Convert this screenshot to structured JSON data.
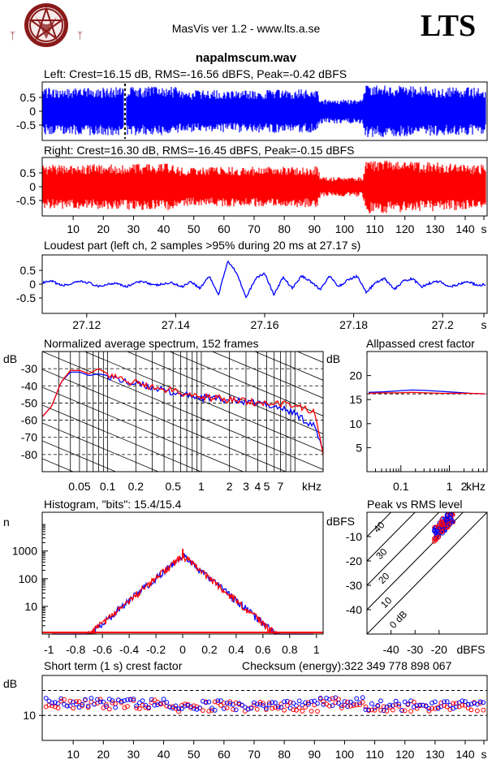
{
  "header": {
    "app_title": "MasVis ver 1.2 - www.lts.a.se",
    "brand": "LTS",
    "logo": "pentagram-goat-logo",
    "filename": "napalmscum.wav"
  },
  "colors": {
    "left": "#0000ff",
    "right": "#ff0000",
    "axis": "#000000"
  },
  "chart_data": [
    {
      "id": "left-waveform",
      "type": "area",
      "title": "Left: Crest=16.15 dB, RMS=-16.56 dBFS, Peak=-0.42 dBFS",
      "yticks": [
        "0.5",
        "0",
        "-0.5"
      ],
      "ylim": [
        -1,
        1
      ],
      "xlim": [
        0,
        147
      ],
      "loudest_marker_s": 27.17,
      "envelope_profile": [
        {
          "x": 0,
          "amp": 0.85
        },
        {
          "x": 44,
          "amp": 0.9
        },
        {
          "x": 45,
          "amp": 0.75
        },
        {
          "x": 85,
          "amp": 0.8
        },
        {
          "x": 91,
          "amp": 0.75
        },
        {
          "x": 92,
          "amp": 0.45
        },
        {
          "x": 106,
          "amp": 0.45
        },
        {
          "x": 107,
          "amp": 0.95
        },
        {
          "x": 147,
          "amp": 0.85
        }
      ]
    },
    {
      "id": "right-waveform",
      "type": "area",
      "title": "Right: Crest=16.30 dB, RMS=-16.45 dBFS, Peak=-0.15 dBFS",
      "yticks": [
        "0.5",
        "0",
        "-0.5"
      ],
      "ylim": [
        -1,
        1
      ],
      "xlim": [
        0,
        147
      ],
      "xticks": [
        "10",
        "20",
        "30",
        "40",
        "50",
        "60",
        "70",
        "80",
        "90",
        "100",
        "110",
        "120",
        "130",
        "140",
        "s"
      ],
      "envelope_profile": [
        {
          "x": 0,
          "amp": 0.8
        },
        {
          "x": 44,
          "amp": 0.85
        },
        {
          "x": 45,
          "amp": 0.7
        },
        {
          "x": 91,
          "amp": 0.75
        },
        {
          "x": 92,
          "amp": 0.35
        },
        {
          "x": 106,
          "amp": 0.35
        },
        {
          "x": 107,
          "amp": 1.0
        },
        {
          "x": 147,
          "amp": 0.8
        }
      ]
    },
    {
      "id": "loudest-part",
      "type": "line",
      "title": "Loudest part (left  ch, 2 samples >95% during 20 ms at 27.17 s)",
      "yticks": [
        "0.5",
        "0",
        "-0.5"
      ],
      "ylim": [
        -1,
        1
      ],
      "xlim": [
        27.11,
        27.21
      ],
      "xticks": [
        "27.12",
        "27.14",
        "27.16",
        "27.18",
        "27.2",
        "s"
      ],
      "series": [
        {
          "values": [
            0.05,
            0.1,
            -0.05,
            0.0,
            0.1,
            0.05,
            -0.1,
            0.0,
            0.05,
            -0.1,
            0.05,
            0.1,
            -0.05,
            0.0,
            0.05,
            -0.1,
            0.1,
            -0.15,
            0.3,
            -0.4,
            0.85,
            0.4,
            -0.5,
            0.2,
            0.4,
            -0.4,
            0.25,
            -0.15,
            0.3,
            0.1,
            -0.2,
            0.3,
            -0.1,
            0.15,
            0.3,
            -0.3,
            0.05,
            0.2,
            -0.2,
            0.1,
            0.2,
            -0.1,
            0.05,
            0.1,
            -0.1,
            0.0,
            0.1,
            -0.05,
            0.0
          ]
        }
      ]
    },
    {
      "id": "avg-spectrum",
      "type": "line",
      "title": "Normalized average spectrum, 152 frames",
      "ylabel": "dB",
      "yticks": [
        "-30",
        "-40",
        "-50",
        "-60",
        "-70",
        "-80"
      ],
      "ylim": [
        -90,
        -20
      ],
      "xticks": [
        "0.05",
        "0.1",
        "0.2",
        "0.5",
        "1",
        "2",
        "3",
        "4",
        "5",
        "7",
        "kHz"
      ],
      "series": [
        {
          "values": [
            -58,
            -52,
            -38,
            -32,
            -32,
            -34,
            -33,
            -34,
            -36,
            -38,
            -39,
            -40,
            -41,
            -43,
            -44,
            -45,
            -46,
            -47,
            -47,
            -48,
            -48,
            -49,
            -50,
            -50,
            -51,
            -52,
            -54,
            -56,
            -60,
            -63,
            -78
          ]
        },
        {
          "values": [
            -58,
            -52,
            -38,
            -31,
            -31,
            -33,
            -30,
            -33,
            -35,
            -37,
            -38,
            -40,
            -41,
            -42,
            -43,
            -45,
            -46,
            -46,
            -47,
            -47,
            -48,
            -48,
            -49,
            -50,
            -50,
            -50,
            -51,
            -52,
            -53,
            -55,
            -80
          ]
        }
      ]
    },
    {
      "id": "allpassed-crest",
      "type": "line",
      "title": "Allpassed crest factor",
      "ylabel": "dB",
      "yticks": [
        "20",
        "15",
        "10",
        "5"
      ],
      "ylim": [
        0,
        25
      ],
      "xticks": [
        "0.1",
        "1",
        "2",
        "kHz"
      ],
      "series": [
        {
          "values": [
            16.5,
            16.6,
            16.8,
            17.0,
            16.9,
            16.7,
            16.5,
            16.3,
            16.2
          ]
        },
        {
          "values": [
            16.3,
            16.4,
            16.4,
            16.5,
            16.4,
            16.3,
            16.3,
            16.3,
            16.2
          ]
        }
      ]
    },
    {
      "id": "histogram",
      "type": "bar",
      "title": "Histogram, \"bits\": 15.4/15.4",
      "ylabel": "n",
      "yticks": [
        "1000",
        "100",
        "10"
      ],
      "xticks": [
        "-1",
        "-0.8",
        "-0.6",
        "-0.4",
        "-0.2",
        "0",
        "0.2",
        "0.4",
        "0.6",
        "0.8",
        "1"
      ],
      "xlim": [
        -1.05,
        1.05
      ],
      "peak_count": 700
    },
    {
      "id": "peak-vs-rms",
      "type": "scatter",
      "title": "Peak vs RMS level",
      "ylabel": "dBFS",
      "yticks": [
        "-10",
        "-20",
        "-30",
        "-40"
      ],
      "xticks": [
        "-40",
        "-30",
        "-20",
        "dBFS"
      ],
      "diagonal_labels": [
        "40",
        "30",
        "20",
        "10",
        "0 dB"
      ],
      "cluster": {
        "rms_range": [
          -22,
          -14
        ],
        "peak_range": [
          -9,
          -1
        ]
      }
    },
    {
      "id": "short-term-crest",
      "type": "scatter",
      "title": "Short term (1 s) crest factor",
      "checksum_label": "Checksum (energy):",
      "checksum_value": "322 349 778 898 067",
      "ylabel": "dB",
      "yticks": [
        "10"
      ],
      "xticks": [
        "10",
        "20",
        "30",
        "40",
        "50",
        "60",
        "70",
        "80",
        "90",
        "100",
        "110",
        "120",
        "130",
        "140",
        "s"
      ],
      "xlim": [
        0,
        147
      ]
    }
  ]
}
